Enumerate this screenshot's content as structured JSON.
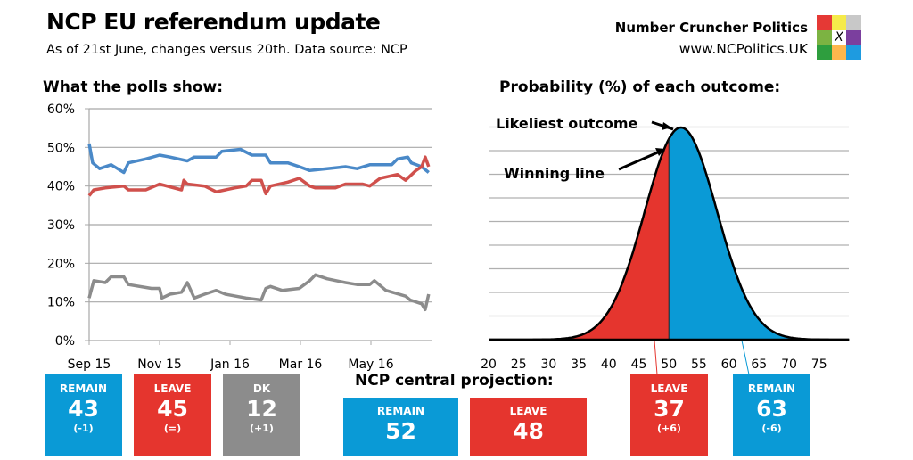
{
  "header": {
    "title": "NCP EU referendum update",
    "subtitle": "As of 21st June, changes versus 20th. Data source: NCP",
    "brand": "Number Cruncher Politics",
    "url": "www.NCPolitics.UK",
    "logo_mark": "X"
  },
  "colors": {
    "remain": "#0a9ad6",
    "leave": "#e5352e",
    "dk": "#8c8c8c",
    "remain_line": "#4a89c8",
    "leave_line": "#d0504c",
    "dk_line": "#8c8c8c",
    "logo": [
      "#e53935",
      "#f5ea4a",
      "#c8c8c8",
      "#7cb342",
      "#ffffff",
      "#7b3f9e",
      "#2e9e3e",
      "#ffb74d",
      "#1e9be0"
    ]
  },
  "chart_data": [
    {
      "type": "line",
      "title": "What the polls show:",
      "ylim": [
        0,
        60
      ],
      "yticks": [
        "0%",
        "10%",
        "20%",
        "30%",
        "40%",
        "50%",
        "60%"
      ],
      "xticks": [
        "Sep 15",
        "Nov 15",
        "Jan 16",
        "Mar 16",
        "May 16"
      ],
      "grid": true,
      "series": [
        {
          "key": "remain",
          "points": [
            [
              "2015-09-01",
              51
            ],
            [
              "2015-09-04",
              46
            ],
            [
              "2015-09-10",
              44.5
            ],
            [
              "2015-09-20",
              45.5
            ],
            [
              "2015-10-01",
              43.5
            ],
            [
              "2015-10-05",
              46
            ],
            [
              "2015-10-20",
              47
            ],
            [
              "2015-11-01",
              48
            ],
            [
              "2015-11-10",
              47.5
            ],
            [
              "2015-11-25",
              46.5
            ],
            [
              "2015-12-01",
              47.5
            ],
            [
              "2015-12-20",
              47.5
            ],
            [
              "2015-12-25",
              49
            ],
            [
              "2016-01-10",
              49.5
            ],
            [
              "2016-01-20",
              48
            ],
            [
              "2016-02-01",
              48
            ],
            [
              "2016-02-05",
              46
            ],
            [
              "2016-02-20",
              46
            ],
            [
              "2016-03-01",
              45
            ],
            [
              "2016-03-10",
              44
            ],
            [
              "2016-03-25",
              44.5
            ],
            [
              "2016-04-10",
              45
            ],
            [
              "2016-04-20",
              44.5
            ],
            [
              "2016-05-01",
              45.5
            ],
            [
              "2016-05-20",
              45.5
            ],
            [
              "2016-05-25",
              47
            ],
            [
              "2016-06-03",
              47.5
            ],
            [
              "2016-06-06",
              46
            ],
            [
              "2016-06-15",
              45
            ],
            [
              "2016-06-21",
              43.5
            ]
          ]
        },
        {
          "key": "leave",
          "points": [
            [
              "2015-09-01",
              37.5
            ],
            [
              "2015-09-05",
              39
            ],
            [
              "2015-09-15",
              39.5
            ],
            [
              "2015-10-01",
              40
            ],
            [
              "2015-10-05",
              39
            ],
            [
              "2015-10-20",
              39
            ],
            [
              "2015-11-01",
              40.5
            ],
            [
              "2015-11-20",
              39
            ],
            [
              "2015-11-22",
              41.5
            ],
            [
              "2015-11-25",
              40.5
            ],
            [
              "2015-12-10",
              40
            ],
            [
              "2015-12-20",
              38.5
            ],
            [
              "2016-01-05",
              39.5
            ],
            [
              "2016-01-15",
              40
            ],
            [
              "2016-01-20",
              41.5
            ],
            [
              "2016-01-28",
              41.5
            ],
            [
              "2016-02-01",
              38
            ],
            [
              "2016-02-05",
              40
            ],
            [
              "2016-02-20",
              41
            ],
            [
              "2016-03-01",
              42
            ],
            [
              "2016-03-10",
              40
            ],
            [
              "2016-03-15",
              39.5
            ],
            [
              "2016-04-01",
              39.5
            ],
            [
              "2016-04-10",
              40.5
            ],
            [
              "2016-04-25",
              40.5
            ],
            [
              "2016-05-01",
              40
            ],
            [
              "2016-05-10",
              42
            ],
            [
              "2016-05-25",
              43
            ],
            [
              "2016-06-01",
              41.5
            ],
            [
              "2016-06-10",
              44
            ],
            [
              "2016-06-15",
              45
            ],
            [
              "2016-06-18",
              47.5
            ],
            [
              "2016-06-21",
              45
            ]
          ]
        },
        {
          "key": "dk",
          "points": [
            [
              "2015-09-01",
              11
            ],
            [
              "2015-09-05",
              15.5
            ],
            [
              "2015-09-15",
              15
            ],
            [
              "2015-09-20",
              16.5
            ],
            [
              "2015-10-01",
              16.5
            ],
            [
              "2015-10-05",
              14.5
            ],
            [
              "2015-10-25",
              13.5
            ],
            [
              "2015-11-01",
              13.5
            ],
            [
              "2015-11-03",
              11
            ],
            [
              "2015-11-10",
              12
            ],
            [
              "2015-11-20",
              12.5
            ],
            [
              "2015-11-25",
              15
            ],
            [
              "2015-12-01",
              11
            ],
            [
              "2015-12-10",
              12
            ],
            [
              "2015-12-20",
              13
            ],
            [
              "2015-12-28",
              12
            ],
            [
              "2016-01-15",
              11
            ],
            [
              "2016-01-28",
              10.5
            ],
            [
              "2016-02-01",
              13.5
            ],
            [
              "2016-02-05",
              14
            ],
            [
              "2016-02-15",
              13
            ],
            [
              "2016-03-01",
              13.5
            ],
            [
              "2016-03-10",
              15.5
            ],
            [
              "2016-03-15",
              17
            ],
            [
              "2016-03-25",
              16
            ],
            [
              "2016-04-10",
              15
            ],
            [
              "2016-04-20",
              14.5
            ],
            [
              "2016-05-01",
              14.5
            ],
            [
              "2016-05-05",
              15.5
            ],
            [
              "2016-05-15",
              13
            ],
            [
              "2016-06-01",
              11.5
            ],
            [
              "2016-06-05",
              10.5
            ],
            [
              "2016-06-15",
              9.5
            ],
            [
              "2016-06-18",
              8
            ],
            [
              "2016-06-21",
              12
            ]
          ]
        }
      ]
    },
    {
      "type": "area",
      "title": "Probability (%) of each outcome:",
      "distribution": "normal",
      "mean": 52,
      "sd": 6,
      "winning_line": 50,
      "xlim": [
        20,
        80
      ],
      "xticks": [
        "20",
        "25",
        "30",
        "35",
        "40",
        "45",
        "50",
        "55",
        "60",
        "65",
        "70",
        "75"
      ],
      "grid": true,
      "annotations": [
        "Likeliest outcome",
        "Winning line"
      ]
    }
  ],
  "polls": [
    {
      "label": "REMAIN",
      "value": "43",
      "change": "(-1)",
      "key": "remain"
    },
    {
      "label": "LEAVE",
      "value": "45",
      "change": "(=)",
      "key": "leave"
    },
    {
      "label": "DK",
      "value": "12",
      "change": "(+1)",
      "key": "dk"
    }
  ],
  "projection": {
    "title": "NCP central projection:",
    "items": [
      {
        "label": "REMAIN",
        "value": "52"
      },
      {
        "label": "LEAVE",
        "value": "48"
      }
    ]
  },
  "probability": [
    {
      "label": "LEAVE",
      "value": "37",
      "change": "(+6)"
    },
    {
      "label": "REMAIN",
      "value": "63",
      "change": "(-6)"
    }
  ]
}
